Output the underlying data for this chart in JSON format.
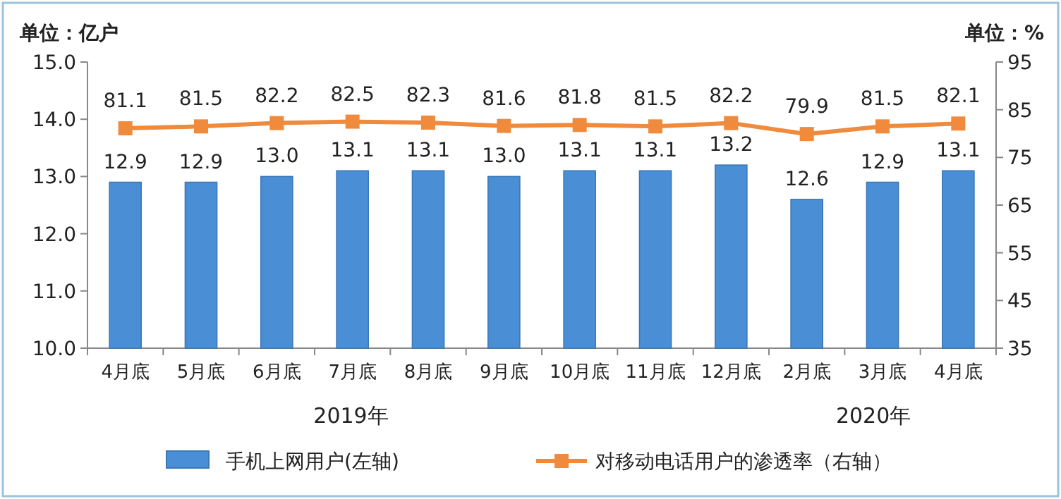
{
  "chart_data": {
    "type": "bar",
    "ylabel": "单位：亿户",
    "y2label": "单位：%",
    "categories": [
      "4月底",
      "5月底",
      "6月底",
      "7月底",
      "8月底",
      "9月底",
      "10月底",
      "11月底",
      "12月底",
      "2月底",
      "3月底",
      "4月底"
    ],
    "series": [
      {
        "name": "手机上网用户(左轴)",
        "color": "#4a8fd6",
        "values": [
          12.9,
          12.9,
          13.0,
          13.1,
          13.1,
          13.0,
          13.1,
          13.1,
          13.2,
          12.6,
          12.9,
          13.1
        ],
        "value_labels": [
          "12.9",
          "12.9",
          "13.0",
          "13.1",
          "13.1",
          "13.0",
          "13.1",
          "13.1",
          "13.2",
          "12.6",
          "12.9",
          "13.1"
        ]
      },
      {
        "name": "对移动电话用户的渗透率（右轴）",
        "type": "line",
        "axis": "y2",
        "color": "#f08a3c",
        "marker": "square",
        "values": [
          81.1,
          81.5,
          82.2,
          82.5,
          82.3,
          81.6,
          81.8,
          81.5,
          82.2,
          79.9,
          81.5,
          82.1
        ]
      }
    ],
    "ylim": [
      10,
      15
    ],
    "yticks": [
      {
        "value": 10,
        "label": "10.0"
      },
      {
        "value": 11,
        "label": "11.0"
      },
      {
        "value": 12,
        "label": "12.0"
      },
      {
        "value": 13,
        "label": "13.0"
      },
      {
        "value": 14,
        "label": "14.0"
      },
      {
        "value": 15,
        "label": "15.0"
      }
    ],
    "y2lim": [
      35,
      95
    ],
    "y2ticks": [
      35,
      45,
      55,
      65,
      75,
      85,
      95
    ],
    "data_labels": true,
    "legend": "bottom",
    "grid": false,
    "annotations": [
      "2019年",
      "2020年"
    ]
  }
}
